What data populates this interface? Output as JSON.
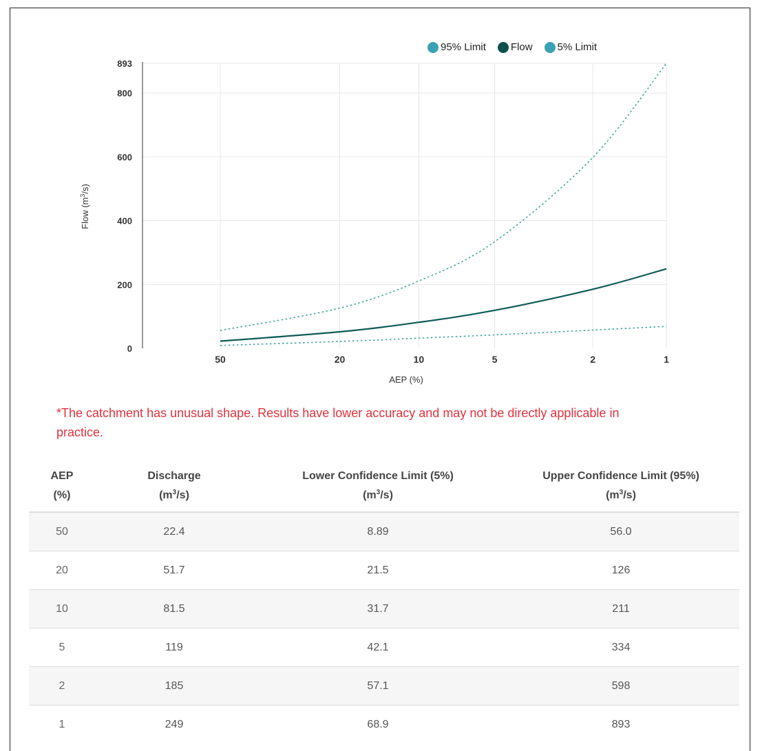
{
  "colors": {
    "upper_limit": "#3aa39b",
    "flow": "#0d5a57",
    "lower_limit": "#3aa39b",
    "legend_upper": "#3ba1b4",
    "legend_flow": "#0e4f4f",
    "legend_lower": "#3ba1b4",
    "note": "#e0323c",
    "grid": "#e6e6e6"
  },
  "legend": [
    {
      "label": "95% Limit",
      "color_key": "legend_upper"
    },
    {
      "label": "Flow",
      "color_key": "legend_flow"
    },
    {
      "label": "5% Limit",
      "color_key": "legend_lower"
    }
  ],
  "chart_data": {
    "type": "line",
    "xlabel": "AEP (%)",
    "ylabel_main": "Flow (m",
    "ylabel_sup": "3",
    "ylabel_end": "/s)",
    "x_scale": "log (Gumbel-style probability spacing)",
    "x": [
      50,
      20,
      10,
      5,
      2,
      1
    ],
    "x_tick_labels": [
      "50",
      "20",
      "10",
      "5",
      "2",
      "1"
    ],
    "y_ticks": [
      0,
      200,
      400,
      600,
      800,
      893
    ],
    "ylim": [
      0,
      893
    ],
    "grid": true,
    "legend_position": "top-right",
    "series": [
      {
        "name": "95% Limit",
        "values": [
          56.0,
          126,
          211,
          334,
          598,
          893
        ],
        "style": "dotted",
        "color_key": "upper_limit"
      },
      {
        "name": "Flow",
        "values": [
          22.4,
          51.7,
          81.5,
          119,
          185,
          249
        ],
        "style": "solid",
        "color_key": "flow"
      },
      {
        "name": "5% Limit",
        "values": [
          8.89,
          21.5,
          31.7,
          42.1,
          57.1,
          68.9
        ],
        "style": "dotted",
        "color_key": "lower_limit"
      }
    ]
  },
  "note": "*The catchment has unusual shape. Results have lower accuracy and may not be directly applicable in practice.",
  "table": {
    "headers": {
      "aep_1": "AEP",
      "aep_2": "(%)",
      "discharge_1": "Discharge",
      "discharge_2a": "(m",
      "discharge_2sup": "3",
      "discharge_2b": "/s)",
      "lower_1": "Lower Confidence Limit (5%)",
      "lower_2a": "(m",
      "lower_2sup": "3",
      "lower_2b": "/s)",
      "upper_1": "Upper Confidence Limit (95%)",
      "upper_2a": "(m",
      "upper_2sup": "3",
      "upper_2b": "/s)"
    },
    "rows": [
      {
        "aep": "50",
        "discharge": "22.4",
        "lower": "8.89",
        "upper": "56.0"
      },
      {
        "aep": "20",
        "discharge": "51.7",
        "lower": "21.5",
        "upper": "126"
      },
      {
        "aep": "10",
        "discharge": "81.5",
        "lower": "31.7",
        "upper": "211"
      },
      {
        "aep": "5",
        "discharge": "119",
        "lower": "42.1",
        "upper": "334"
      },
      {
        "aep": "2",
        "discharge": "185",
        "lower": "57.1",
        "upper": "598"
      },
      {
        "aep": "1",
        "discharge": "249",
        "lower": "68.9",
        "upper": "893"
      }
    ]
  }
}
